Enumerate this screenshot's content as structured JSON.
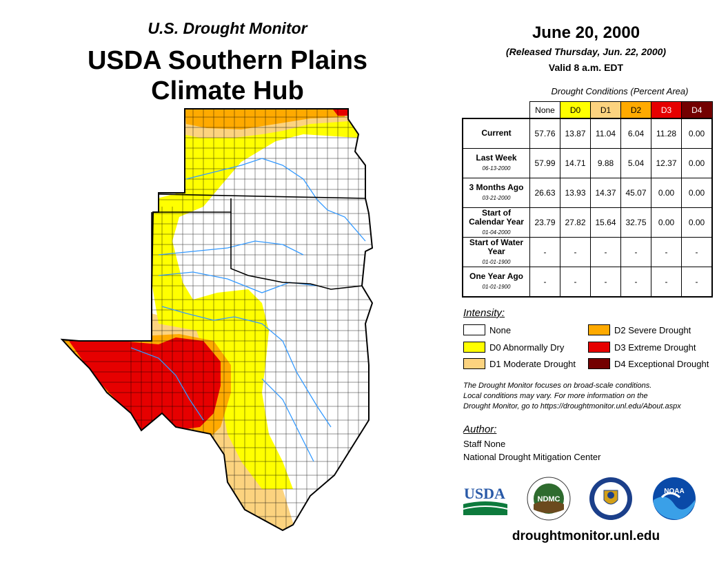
{
  "header": {
    "monitor_title": "U.S. Drought Monitor",
    "hub_title_line1": "USDA Southern Plains",
    "hub_title_line2": "Climate Hub"
  },
  "date_block": {
    "date": "June 20, 2000",
    "released": "(Released Thursday, Jun. 22, 2000)",
    "valid": "Valid 8 a.m. EDT"
  },
  "conditions_table": {
    "title": "Drought Conditions (Percent Area)",
    "columns": [
      {
        "label": "None",
        "color": "#ffffff",
        "text_color": "#000000"
      },
      {
        "label": "D0",
        "color": "#ffff00",
        "text_color": "#000000"
      },
      {
        "label": "D1",
        "color": "#fcd37f",
        "text_color": "#000000"
      },
      {
        "label": "D2",
        "color": "#ffaa00",
        "text_color": "#000000"
      },
      {
        "label": "D3",
        "color": "#e60000",
        "text_color": "#ffffff"
      },
      {
        "label": "D4",
        "color": "#730000",
        "text_color": "#ffffff"
      }
    ],
    "rows": [
      {
        "label": "Current",
        "sub": "",
        "values": [
          "57.76",
          "13.87",
          "11.04",
          "6.04",
          "11.28",
          "0.00"
        ]
      },
      {
        "label": "Last Week",
        "sub": "06-13-2000",
        "values": [
          "57.99",
          "14.71",
          "9.88",
          "5.04",
          "12.37",
          "0.00"
        ]
      },
      {
        "label": "3 Months Ago",
        "sub": "03-21-2000",
        "values": [
          "26.63",
          "13.93",
          "14.37",
          "45.07",
          "0.00",
          "0.00"
        ]
      },
      {
        "label": "Start of Calendar Year",
        "sub": "01-04-2000",
        "values": [
          "23.79",
          "27.82",
          "15.64",
          "32.75",
          "0.00",
          "0.00"
        ]
      },
      {
        "label": "Start of Water Year",
        "sub": "01-01-1900",
        "values": [
          "-",
          "-",
          "-",
          "-",
          "-",
          "-"
        ]
      },
      {
        "label": "One Year Ago",
        "sub": "01-01-1900",
        "values": [
          "-",
          "-",
          "-",
          "-",
          "-",
          "-"
        ]
      }
    ]
  },
  "legend": {
    "title": "Intensity:",
    "items": [
      {
        "label": "None",
        "color": "#ffffff"
      },
      {
        "label": "D0 Abnormally Dry",
        "color": "#ffff00"
      },
      {
        "label": "D1 Moderate Drought",
        "color": "#fcd37f"
      },
      {
        "label": "D2 Severe Drought",
        "color": "#ffaa00"
      },
      {
        "label": "D3 Extreme Drought",
        "color": "#e60000"
      },
      {
        "label": "D4 Exceptional Drought",
        "color": "#730000"
      }
    ]
  },
  "note": {
    "line1": "The Drought Monitor focuses on broad-scale conditions.",
    "line2": "Local conditions may vary. For more information on the",
    "line3": "Drought Monitor, go to https://droughtmonitor.unl.edu/About.aspx"
  },
  "author": {
    "title": "Author:",
    "name": "Staff None",
    "org": "National Drought Mitigation Center"
  },
  "logos": {
    "usda": "USDA",
    "ndmc": "NDMC",
    "noaa": "NOAA"
  },
  "footer": {
    "url": "droughtmonitor.unl.edu"
  },
  "map_colors": {
    "none": "#ffffff",
    "d0": "#ffff00",
    "d1": "#fcd37f",
    "d2": "#ffaa00",
    "d3": "#e60000",
    "border": "#000000",
    "river": "#3399ff"
  }
}
